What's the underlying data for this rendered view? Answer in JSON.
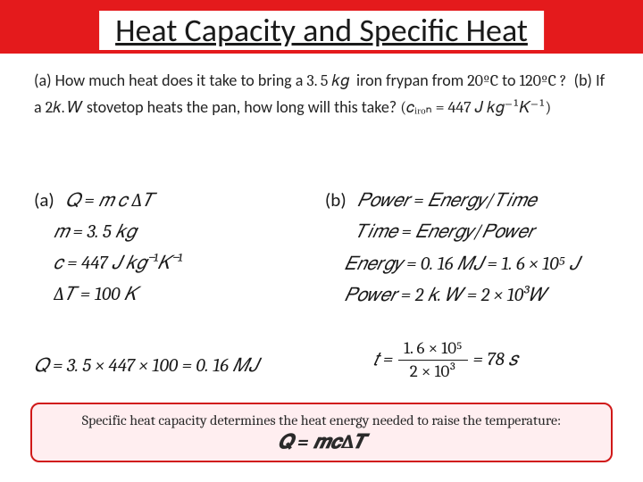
{
  "title": "Heat Capacity and Specific Heat",
  "problem": {
    "part_a_label": "(a)",
    "q1_pre": "How much heat does it take to bring a",
    "mass": "3. 5 𝑘𝑔",
    "q1_mid": "iron frypan from",
    "t1": "20ºC",
    "to_word": "to",
    "t2": "120ºC ?",
    "part_b_label": "(b)",
    "q2_pre": "If a",
    "power": "2𝑘. 𝑊",
    "q2_post": "stovetop heats the pan, how long will this take?",
    "c_iron": "(𝑐ᵢᵣₒₙ = 447 𝐽 𝑘𝑔⁻¹𝐾⁻¹)"
  },
  "colA": {
    "label": "(a)",
    "eq1": "𝑄 = 𝑚 𝑐 ∆𝑇",
    "m": "𝑚 = 3. 5 𝑘𝑔",
    "c": "𝑐 = 447 𝐽 𝑘𝑔⁻¹𝐾⁻¹",
    "dT": "∆𝑇 = 100 𝐾",
    "result": "𝑄 = 3. 5 × 447 × 100 = 0. 16 𝑀𝐽"
  },
  "colB": {
    "label": "(b)",
    "eq1": "𝑃𝑜𝑤𝑒𝑟 = 𝐸𝑛𝑒𝑟𝑔𝑦/𝑇𝑖𝑚𝑒",
    "eq2": "𝑇𝑖𝑚𝑒 = 𝐸𝑛𝑒𝑟𝑔𝑦/𝑃𝑜𝑤𝑒𝑟",
    "energy": "𝐸𝑛𝑒𝑟𝑔𝑦 = 0. 16 𝑀𝐽 = 1. 6 × 10⁵ 𝐽",
    "power": "𝑃𝑜𝑤𝑒𝑟 = 2 𝑘. 𝑊 = 2 × 10³𝑊",
    "t_lhs": "𝑡 =",
    "t_num": "1. 6 × 10⁵",
    "t_den": "2 × 10³",
    "t_rhs": "= 78 𝑠"
  },
  "summary": {
    "text_pre": "Specific heat capacity",
    "text_post": " determines the heat energy needed to raise the temperature:",
    "eq": "𝑸 = 𝒎𝒄∆𝑻"
  },
  "colors": {
    "red": "#e41a1c",
    "box_border": "#d01818",
    "box_bg": "#ffeef0",
    "text": "#1a1a1a"
  }
}
